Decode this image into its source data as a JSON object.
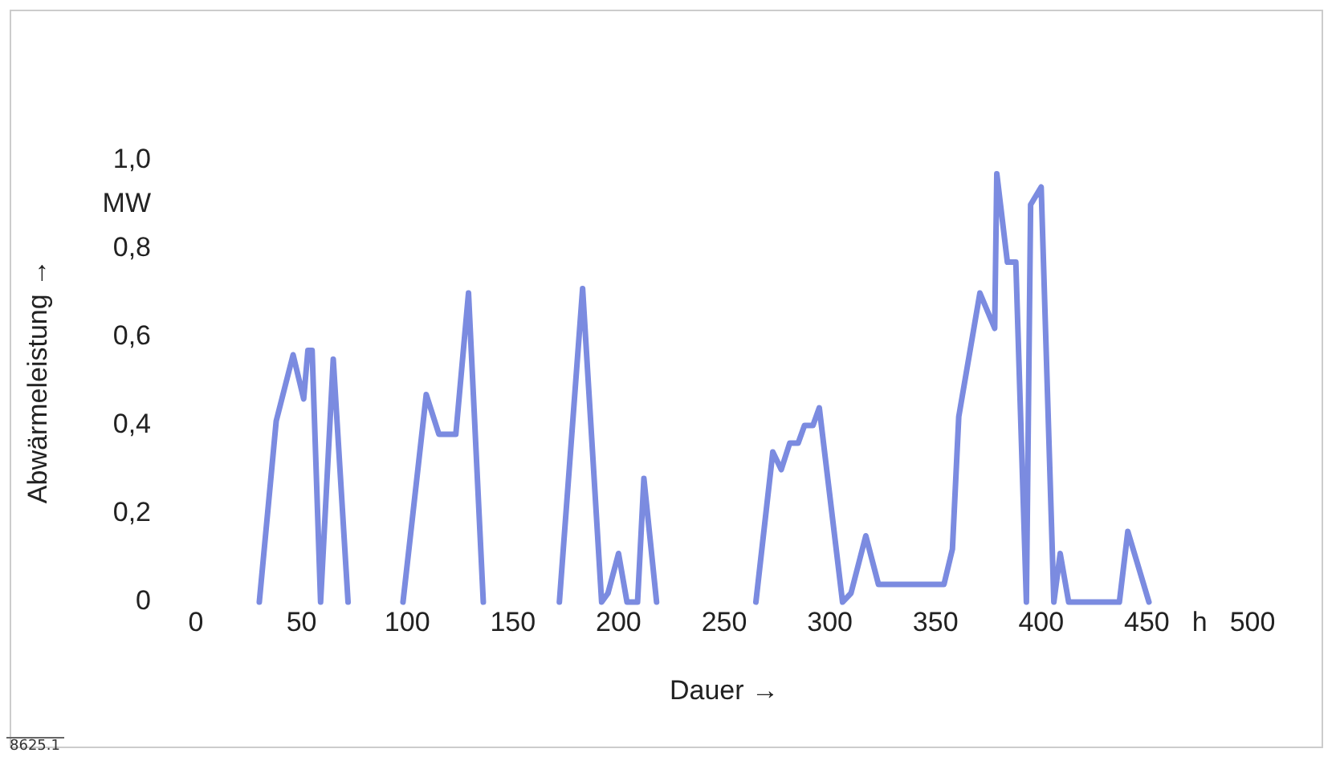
{
  "chart_data": {
    "type": "line",
    "xlabel": "Dauer →",
    "ylabel": "Abwärmeleistung →",
    "annotations": [
      "8625.1"
    ],
    "xlim": [
      0,
      500
    ],
    "xticks": [
      0,
      50,
      100,
      150,
      200,
      250,
      300,
      350,
      400,
      450,
      {
        "value": 475,
        "label": "h"
      },
      500
    ],
    "ylim": [
      0,
      1
    ],
    "yticks": [
      {
        "value": 0,
        "label": "0"
      },
      {
        "value": 0.2,
        "label": "0,2"
      },
      {
        "value": 0.4,
        "label": "0,4"
      },
      {
        "value": 0.6,
        "label": "0,6"
      },
      {
        "value": 0.8,
        "label": "0,8"
      },
      {
        "value": 0.9,
        "label": "MW"
      },
      {
        "value": 1,
        "label": "1,0"
      }
    ],
    "grid": false,
    "legend": false,
    "marker": "none",
    "line_style": "solid",
    "series": [
      {
        "color": "#7b8be0",
        "x": [
          30,
          38,
          46,
          51,
          53,
          55,
          59,
          65,
          72,
          85,
          98,
          109,
          115,
          123,
          129,
          136,
          150,
          172,
          183,
          192,
          195,
          200,
          204,
          209,
          212,
          218,
          240,
          265,
          273,
          277,
          281,
          285,
          288,
          292,
          295,
          306,
          310,
          317,
          323,
          354,
          358,
          361,
          371,
          378,
          379,
          384,
          388,
          393,
          395,
          400,
          406,
          409,
          413,
          437,
          441,
          451
        ],
        "values": [
          0,
          0.41,
          0.56,
          0.46,
          0.57,
          0.57,
          0,
          0.55,
          0,
          null,
          0,
          0.47,
          0.38,
          0.38,
          0.7,
          0,
          null,
          0,
          0.71,
          0,
          0.02,
          0.11,
          0,
          0,
          0.28,
          0,
          null,
          0,
          0.34,
          0.3,
          0.36,
          0.36,
          0.4,
          0.4,
          0.44,
          0,
          0.02,
          0.15,
          0.04,
          0.04,
          0.12,
          0.42,
          0.7,
          0.62,
          0.97,
          0.77,
          0.77,
          0,
          0.9,
          0.94,
          0,
          0.11,
          0,
          0,
          0.16,
          0
        ]
      }
    ]
  }
}
